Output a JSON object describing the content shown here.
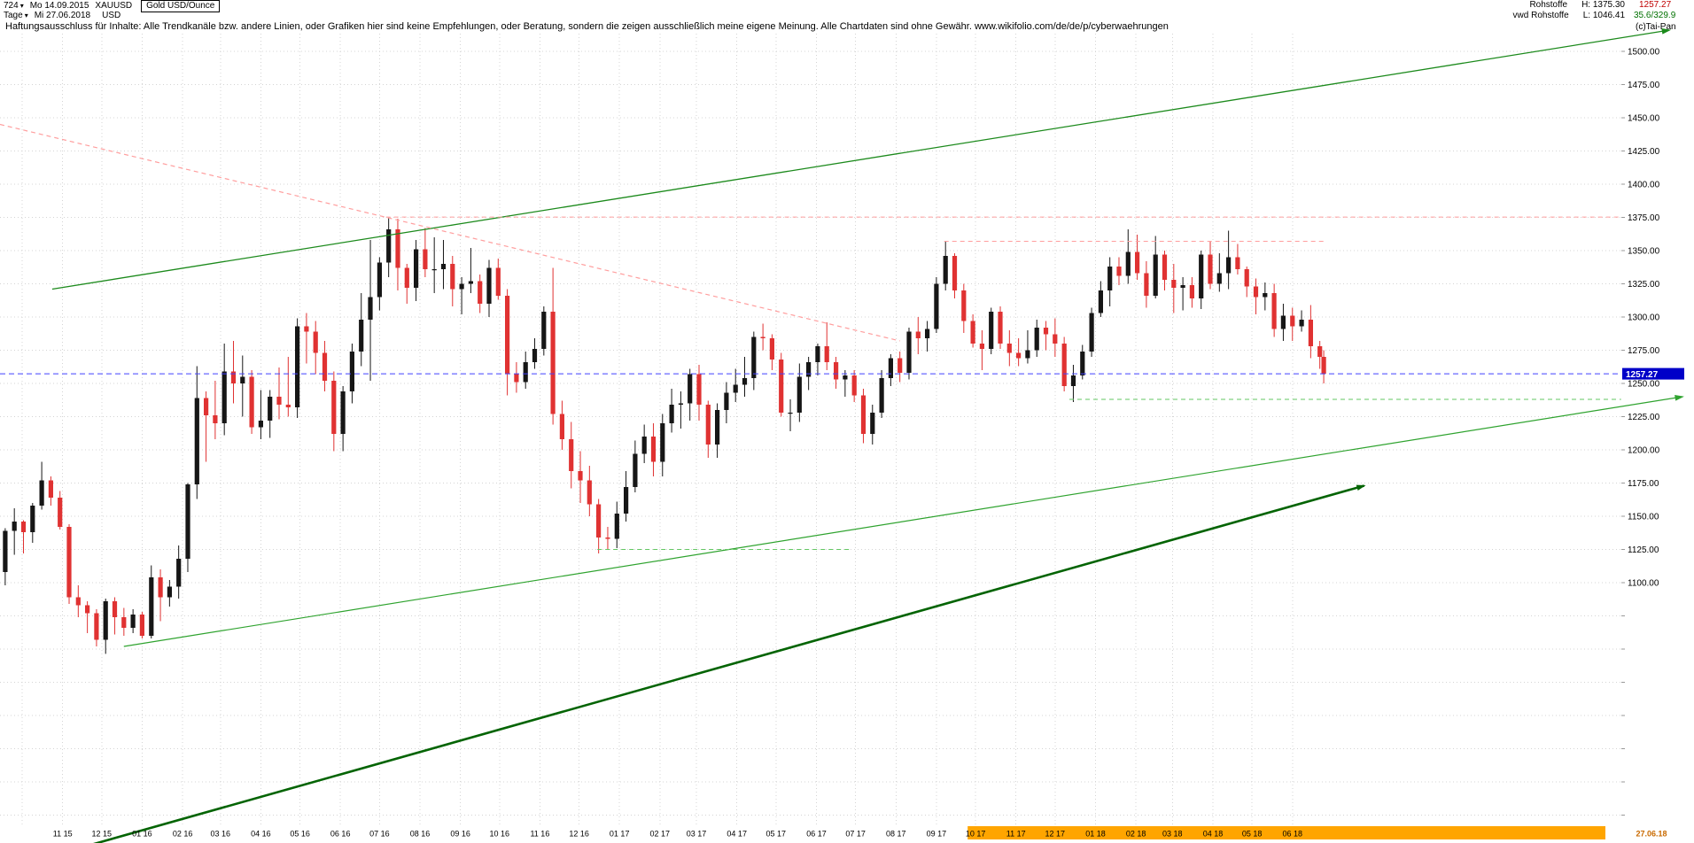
{
  "header": {
    "symbol_id": "724",
    "start_date": "Mo 14.09.2015",
    "ticker": "XAUUSD",
    "instrument": "Gold USD/Ounce",
    "period": "Tage",
    "end_date": "Mi 27.06.2018",
    "currency": "USD",
    "category": "Rohstoffe",
    "source": "vwd Rohstoffe",
    "high_label": "H: 1375.30",
    "low_label": "L: 1046.41",
    "last_price": "1257.27",
    "indicator_values": "35.6/329.9",
    "copyright": "(c)Tai-Pan",
    "disclaimer": "Haftungsausschluss für Inhalte: Alle Trendkanäle bzw. andere Linien, oder Grafiken hier sind keine Empfehlungen, oder Beratung, sondern die zeigen ausschließlich meine eigene Meinung. Alle Chartdaten sind ohne Gewähr.  www.wikifolio.com/de/de/p/cyberwaehrungen"
  },
  "colors": {
    "up": "#161616",
    "down": "#e03232",
    "grid": "#d4d4d4",
    "green": "#1c8a1c",
    "darkgreen": "#046404",
    "green2": "#2fa32f",
    "lightgreen": "#63c763",
    "pink": "#ff9e9e",
    "blue": "#4040ff",
    "tag_bg": "#0000c8",
    "tag_text": "#ffffff",
    "month_hl": "#ffa500",
    "end_date_color": "#c96a00"
  },
  "chart_data": {
    "type": "candlestick",
    "title": "Gold USD/Ounce (XAUUSD), Tage",
    "x_start_date": "14.09.2015",
    "x_end_date": "27.06.2018",
    "ylim": [
      917,
      1513
    ],
    "period_high": 1375.3,
    "period_low": 1046.41,
    "last_close": 1257.27,
    "last_label": "1257.27",
    "end_label": "27.06.18",
    "resolution": "weekly approximation of daily chart, values in USD/oz",
    "first_open": 1108,
    "price_tick_labels": [
      "1500.00",
      "1475.00",
      "1450.00",
      "1425.00",
      "1400.00",
      "1375.00",
      "1350.00",
      "1325.00",
      "1300.00",
      "1275.00",
      "1250.00",
      "1225.00",
      "1200.00",
      "1175.00",
      "1150.00",
      "1125.00",
      "1100.00"
    ],
    "extra_grid_day": 17,
    "highlight_from_day": 742,
    "month_labels": [
      [
        "11 15",
        48
      ],
      [
        "12 15",
        78
      ],
      [
        "01 16",
        109
      ],
      [
        "02 16",
        140
      ],
      [
        "03 16",
        169
      ],
      [
        "04 16",
        200
      ],
      [
        "05 16",
        230
      ],
      [
        "06 16",
        261
      ],
      [
        "07 16",
        291
      ],
      [
        "08 16",
        322
      ],
      [
        "09 16",
        353
      ],
      [
        "10 16",
        383
      ],
      [
        "11 16",
        414
      ],
      [
        "12 16",
        444
      ],
      [
        "01 17",
        475
      ],
      [
        "02 17",
        506
      ],
      [
        "03 17",
        534
      ],
      [
        "04 17",
        565
      ],
      [
        "05 17",
        595
      ],
      [
        "06 17",
        626
      ],
      [
        "07 17",
        656
      ],
      [
        "08 17",
        687
      ],
      [
        "09 17",
        718
      ],
      [
        "10 17",
        748
      ],
      [
        "11 17",
        779
      ],
      [
        "12 17",
        809
      ],
      [
        "01 18",
        840
      ],
      [
        "02 18",
        871
      ],
      [
        "03 18",
        899
      ],
      [
        "04 18",
        930
      ],
      [
        "05 18",
        960
      ],
      [
        "06 18",
        991
      ]
    ],
    "weekly_candles": [
      [
        1141,
        1098,
        1139
      ],
      [
        1156,
        1121,
        1146
      ],
      [
        1147,
        1122,
        1138
      ],
      [
        1160,
        1130,
        1158
      ],
      [
        1191,
        1155,
        1177
      ],
      [
        1180,
        1158,
        1164
      ],
      [
        1169,
        1140,
        1142
      ],
      [
        1144,
        1084,
        1089
      ],
      [
        1098,
        1074,
        1083
      ],
      [
        1086,
        1062,
        1077
      ],
      [
        1080,
        1052,
        1057
      ],
      [
        1088,
        1046.4,
        1086
      ],
      [
        1089,
        1061,
        1074
      ],
      [
        1081,
        1060,
        1066
      ],
      [
        1080,
        1062,
        1076
      ],
      [
        1078,
        1058,
        1060
      ],
      [
        1113,
        1058,
        1104
      ],
      [
        1110,
        1071,
        1089
      ],
      [
        1102,
        1082,
        1097
      ],
      [
        1128,
        1088,
        1118
      ],
      [
        1175,
        1108,
        1174
      ],
      [
        1263,
        1163,
        1239
      ],
      [
        1244,
        1191,
        1226
      ],
      [
        1252,
        1208,
        1220
      ],
      [
        1280,
        1211,
        1259
      ],
      [
        1282,
        1235,
        1250
      ],
      [
        1271,
        1225,
        1255
      ],
      [
        1260,
        1212,
        1217
      ],
      [
        1245,
        1208,
        1222
      ],
      [
        1245,
        1209,
        1240
      ],
      [
        1262,
        1223,
        1234
      ],
      [
        1270,
        1225,
        1232
      ],
      [
        1299,
        1224,
        1293
      ],
      [
        1303,
        1265,
        1289
      ],
      [
        1297,
        1257,
        1273
      ],
      [
        1282,
        1244,
        1252
      ],
      [
        1259,
        1199,
        1212
      ],
      [
        1248,
        1199,
        1244
      ],
      [
        1280,
        1235,
        1274
      ],
      [
        1318,
        1263,
        1298
      ],
      [
        1358,
        1252,
        1315
      ],
      [
        1345,
        1305,
        1341
      ],
      [
        1375.3,
        1330,
        1366
      ],
      [
        1374,
        1320,
        1337
      ],
      [
        1340,
        1310,
        1322
      ],
      [
        1358,
        1312,
        1351
      ],
      [
        1367,
        1330,
        1336
      ],
      [
        1360,
        1318,
        1336
      ],
      [
        1358,
        1321,
        1340
      ],
      [
        1346,
        1308,
        1321
      ],
      [
        1330,
        1302,
        1325
      ],
      [
        1352,
        1318,
        1327
      ],
      [
        1332,
        1303,
        1310
      ],
      [
        1343,
        1300,
        1337
      ],
      [
        1344,
        1313,
        1316
      ],
      [
        1321,
        1241,
        1257
      ],
      [
        1266,
        1243,
        1251
      ],
      [
        1274,
        1246,
        1266
      ],
      [
        1284,
        1261,
        1276
      ],
      [
        1308,
        1271,
        1304
      ],
      [
        1337,
        1219,
        1227
      ],
      [
        1237,
        1200,
        1208
      ],
      [
        1221,
        1171,
        1184
      ],
      [
        1199,
        1160,
        1177
      ],
      [
        1188,
        1150,
        1159
      ],
      [
        1163,
        1122,
        1134
      ],
      [
        1142,
        1125,
        1133
      ],
      [
        1161,
        1126,
        1152
      ],
      [
        1184,
        1146,
        1172
      ],
      [
        1207,
        1168,
        1197
      ],
      [
        1219,
        1190,
        1210
      ],
      [
        1220,
        1180,
        1191
      ],
      [
        1227,
        1180,
        1220
      ],
      [
        1246,
        1213,
        1234
      ],
      [
        1244,
        1216,
        1235
      ],
      [
        1261,
        1222,
        1257
      ],
      [
        1264,
        1222,
        1234
      ],
      [
        1237,
        1194,
        1204
      ],
      [
        1235,
        1194,
        1230
      ],
      [
        1251,
        1220,
        1243
      ],
      [
        1261,
        1236,
        1249
      ],
      [
        1270,
        1240,
        1254
      ],
      [
        1289,
        1245,
        1285
      ],
      [
        1295,
        1275,
        1284
      ],
      [
        1287,
        1260,
        1268
      ],
      [
        1273,
        1225,
        1228
      ],
      [
        1238,
        1214,
        1228
      ],
      [
        1265,
        1221,
        1255
      ],
      [
        1270,
        1245,
        1266
      ],
      [
        1280,
        1256,
        1278
      ],
      [
        1296,
        1260,
        1266
      ],
      [
        1270,
        1246,
        1253
      ],
      [
        1260,
        1240,
        1256
      ],
      [
        1260,
        1236,
        1241
      ],
      [
        1246,
        1205,
        1212
      ],
      [
        1234,
        1204,
        1228
      ],
      [
        1260,
        1224,
        1254
      ],
      [
        1272,
        1248,
        1269
      ],
      [
        1274,
        1251,
        1258
      ],
      [
        1292,
        1253,
        1289
      ],
      [
        1300,
        1272,
        1284
      ],
      [
        1297,
        1274,
        1291
      ],
      [
        1330,
        1288,
        1325
      ],
      [
        1357,
        1320,
        1346
      ],
      [
        1348,
        1314,
        1320
      ],
      [
        1325,
        1288,
        1297
      ],
      [
        1302,
        1277,
        1280
      ],
      [
        1290,
        1260,
        1276
      ],
      [
        1307,
        1272,
        1304
      ],
      [
        1308,
        1276,
        1280
      ],
      [
        1290,
        1263,
        1273
      ],
      [
        1284,
        1263,
        1269
      ],
      [
        1290,
        1265,
        1275
      ],
      [
        1298,
        1270,
        1292
      ],
      [
        1297,
        1275,
        1287
      ],
      [
        1299,
        1270,
        1280
      ],
      [
        1285,
        1244,
        1248
      ],
      [
        1264,
        1236,
        1256
      ],
      [
        1279,
        1253,
        1274
      ],
      [
        1307,
        1270,
        1303
      ],
      [
        1327,
        1300,
        1320
      ],
      [
        1345,
        1308,
        1338
      ],
      [
        1345,
        1324,
        1331
      ],
      [
        1366,
        1325,
        1349
      ],
      [
        1362,
        1328,
        1333
      ],
      [
        1342,
        1307,
        1316
      ],
      [
        1361,
        1314,
        1347
      ],
      [
        1350,
        1320,
        1328
      ],
      [
        1340,
        1303,
        1322
      ],
      [
        1330,
        1305,
        1324
      ],
      [
        1330,
        1307,
        1314
      ],
      [
        1350,
        1306,
        1347
      ],
      [
        1357,
        1321,
        1325
      ],
      [
        1348,
        1319,
        1333
      ],
      [
        1365,
        1321,
        1345
      ],
      [
        1355,
        1332,
        1336
      ],
      [
        1338,
        1315,
        1323
      ],
      [
        1329,
        1302,
        1315
      ],
      [
        1326,
        1305,
        1318
      ],
      [
        1325,
        1285,
        1291
      ],
      [
        1310,
        1282,
        1301
      ],
      [
        1307,
        1282,
        1293
      ],
      [
        1305,
        1289,
        1298
      ],
      [
        1309,
        1269,
        1278
      ],
      [
        1282,
        1261,
        1270
      ],
      [
        1275,
        1250,
        1257.27
      ]
    ],
    "lines": [
      {
        "name": "ascending-channel-upper-line",
        "from": [
          40,
          1321
        ],
        "to": [
          1280,
          1516
        ],
        "color": "green",
        "width": 1.3,
        "dash": null,
        "arrow": true
      },
      {
        "name": "ascending-support-thick-line",
        "from": [
          71,
          903
        ],
        "to": [
          1046,
          1173
        ],
        "color": "darkgreen",
        "width": 2.6,
        "dash": null,
        "arrow": true
      },
      {
        "name": "ascending-support-lows-line",
        "from": [
          95,
          1052
        ],
        "to": [
          1290,
          1240
        ],
        "color": "green2",
        "width": 1.2,
        "dash": null,
        "arrow": true
      },
      {
        "name": "descending-resistance-line",
        "from": [
          0,
          1445
        ],
        "to": [
          690,
          1282
        ],
        "color": "pink",
        "width": 1.2,
        "dash": "5,4",
        "arrow": false
      },
      {
        "name": "horizontal-resistance-1375",
        "from": [
          296,
          1375.3
        ],
        "to": [
          1243,
          1375.3
        ],
        "color": "pink",
        "width": 1,
        "dash": "5,4",
        "arrow": false
      },
      {
        "name": "horizontal-resistance-1357",
        "from": [
          724,
          1357
        ],
        "to": [
          1017,
          1357
        ],
        "color": "pink",
        "width": 1,
        "dash": "5,4",
        "arrow": false
      },
      {
        "name": "current-price-dashed-line",
        "from": [
          0,
          1257.27
        ],
        "to": [
          1243,
          1257.27
        ],
        "color": "blue",
        "width": 1,
        "dash": "6,4",
        "arrow": false
      },
      {
        "name": "horizontal-support-1238",
        "from": [
          820,
          1238
        ],
        "to": [
          1243,
          1238
        ],
        "color": "lightgreen",
        "width": 1,
        "dash": "5,4",
        "arrow": false
      },
      {
        "name": "horizontal-support-1125",
        "from": [
          458,
          1125
        ],
        "to": [
          652,
          1125
        ],
        "color": "lightgreen",
        "width": 1,
        "dash": "5,4",
        "arrow": false
      }
    ]
  }
}
